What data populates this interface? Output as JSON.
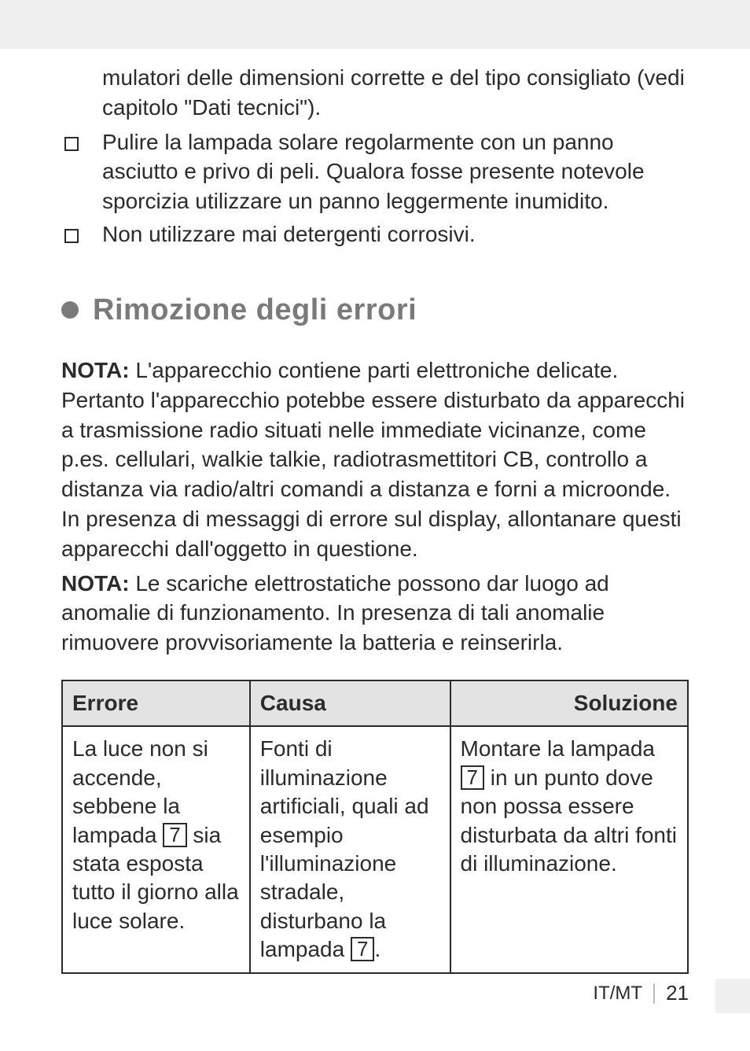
{
  "top_continuation": "mulatori delle dimensioni corrette e del tipo consigliato (vedi capitolo \"Dati tecnici\").",
  "bullets": [
    "Pulire la lampada solare regolarmente con un panno asciutto e privo di peli. Qualora fosse presente notevole sporcizia utilizzare un panno leggermente inumidito.",
    "Non utilizzare mai detergenti corrosivi."
  ],
  "heading": "Rimozione degli errori",
  "note1_label": "NOTA:",
  "note1_body": " L'apparecchio contiene parti elettroniche delicate. Pertanto l'apparecchio potebbe essere disturbato da apparecchi a trasmissione radio situati nelle immediate vicinanze, come p.es. cellulari, walkie talkie, radiotrasmettitori CB, controllo a distanza via radio/altri comandi a distanza e forni a microonde. In presenza di messaggi di errore sul display, allontanare questi apparecchi dall'oggetto in questione.",
  "note2_label": "NOTA:",
  "note2_body": " Le scariche elettrostatiche possono dar luogo ad anomalie di funzionamento. In presenza di tali anomalie rimuovere provvisoriamente la batteria e reinserirla.",
  "table": {
    "headers": [
      "Errore",
      "Causa",
      "Soluzione"
    ],
    "col_widths": [
      "30%",
      "32%",
      "38%"
    ],
    "ref_char": "7",
    "row1": {
      "errore_pre": "La luce non si accende, sebbene la lampada ",
      "errore_post": " sia stata esposta tutto il giorno alla luce solare.",
      "causa_pre": "Fonti di illuminazione artificiali, quali ad esempio l'illuminazione stradale, disturbano la lampada ",
      "causa_post": ".",
      "sol_pre": "Montare la lampada ",
      "sol_post": " in un punto dove non possa essere disturbata da altri fonti di illuminazione."
    }
  },
  "footer": {
    "locale": "IT/MT",
    "page": "21"
  },
  "colors": {
    "band": "#f0f0f0",
    "heading": "#7a7a7a",
    "text": "#2b2b2b",
    "th_bg": "#e3e3e3"
  }
}
